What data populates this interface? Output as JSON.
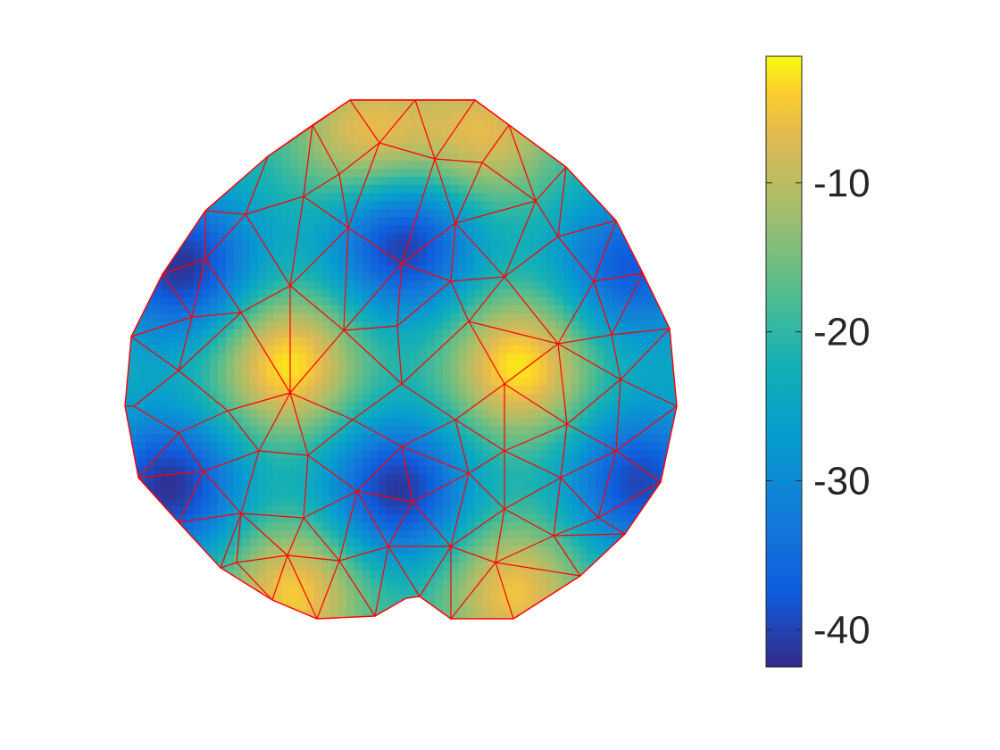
{
  "chart_data": {
    "type": "heatmap",
    "title": "",
    "xlabel": "",
    "ylabel": "",
    "axes_visible": false,
    "colormap": "parula",
    "mesh_color": "#ff0000",
    "value_range": [
      -42.5,
      -1.5
    ],
    "colorbar": {
      "location": "right",
      "ticks": [
        -10,
        -20,
        -30,
        -40
      ],
      "tick_labels": [
        "-10",
        "-20",
        "-30",
        "-40"
      ]
    },
    "extrema": {
      "maxima": [
        {
          "label": "left-center",
          "value": -2
        },
        {
          "label": "right-center",
          "value": -2
        },
        {
          "label": "top-left",
          "value": -6
        },
        {
          "label": "top-right",
          "value": -7
        },
        {
          "label": "bottom-left",
          "value": -4
        },
        {
          "label": "bottom-right",
          "value": -5
        }
      ],
      "minima": [
        {
          "label": "top-center",
          "value": -42
        },
        {
          "label": "bottom-center",
          "value": -42
        },
        {
          "label": "left-upper-edge",
          "value": -42
        },
        {
          "label": "right-upper-edge",
          "value": -38
        },
        {
          "label": "left-lower-edge",
          "value": -42
        },
        {
          "label": "right-lower-edge",
          "value": -40
        }
      ]
    }
  }
}
